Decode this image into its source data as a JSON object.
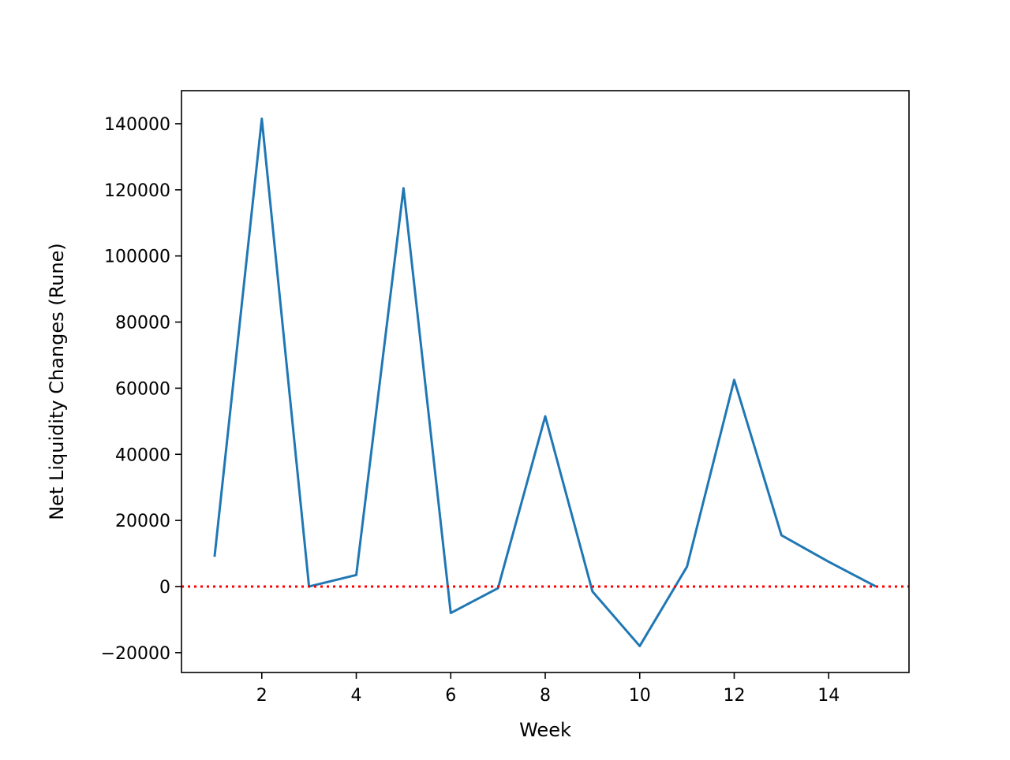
{
  "chart_data": {
    "type": "line",
    "title": "",
    "xlabel": "Week",
    "ylabel": "Net Liquidity Changes (Rune)",
    "xlim": [
      0.3,
      15.7
    ],
    "ylim": [
      -26000,
      150000
    ],
    "xticks": [
      2,
      4,
      6,
      8,
      10,
      12,
      14
    ],
    "xtick_labels": [
      "2",
      "4",
      "6",
      "8",
      "10",
      "12",
      "14"
    ],
    "yticks": [
      -20000,
      0,
      20000,
      40000,
      60000,
      80000,
      100000,
      120000,
      140000
    ],
    "ytick_labels": [
      "−20000",
      "0",
      "20000",
      "40000",
      "60000",
      "80000",
      "100000",
      "120000",
      "140000"
    ],
    "grid": false,
    "series": [
      {
        "color": "#1f77b4",
        "x": [
          1,
          2,
          3,
          4,
          5,
          6,
          7,
          8,
          9,
          10,
          11,
          12,
          13,
          14,
          15
        ],
        "y": [
          9000,
          141500,
          0,
          3500,
          120500,
          -8000,
          -500,
          51500,
          -1500,
          -18000,
          6000,
          62500,
          15500,
          7500,
          0
        ]
      }
    ],
    "reference_line": {
      "y": 0,
      "color": "#ff0000",
      "style": "dotted"
    }
  }
}
